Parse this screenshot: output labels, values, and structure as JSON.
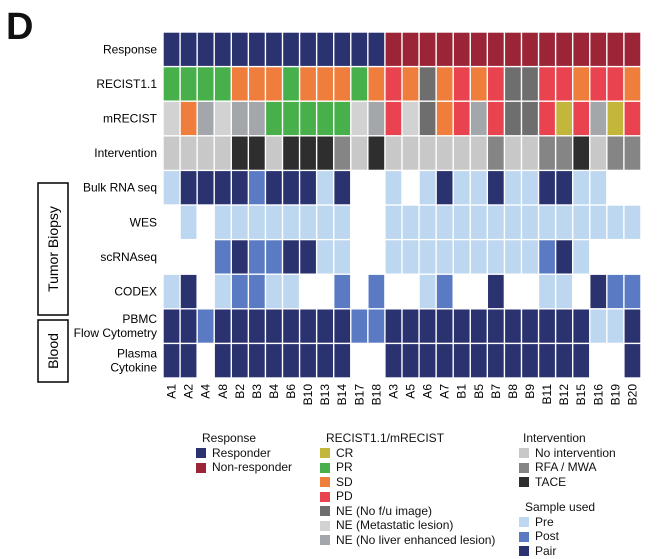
{
  "panel_label": "D",
  "colors": {
    "responder": "#2b3270",
    "non_responder": "#9b2537",
    "CR": "#c4b63a",
    "PR": "#48b04b",
    "SD": "#ef7d3c",
    "PD": "#e8434e",
    "NE_nofu": "#6e6e6e",
    "NE_met": "#d2d2d2",
    "NE_noliver": "#a3a6ab",
    "no_intervention": "#c8c8c8",
    "rfa_mwa": "#858585",
    "tace": "#2e2e2e",
    "pre": "#bcd7ef",
    "post": "#5a7bc4",
    "pair": "#2b3270",
    "empty": "#ffffff"
  },
  "group_labels": {
    "tumor_biopsy": "Tumor Biopsy",
    "blood": "Blood"
  },
  "chart_data": {
    "type": "heatmap",
    "x": [
      "A1",
      "A2",
      "A4",
      "A8",
      "B2",
      "B3",
      "B4",
      "B6",
      "B10",
      "B13",
      "B14",
      "B17",
      "B18",
      "A3",
      "A5",
      "A6",
      "A7",
      "B1",
      "B5",
      "B7",
      "B8",
      "B9",
      "B11",
      "B12",
      "B15",
      "B16",
      "B19",
      "B20"
    ],
    "rows": [
      {
        "label": "Response",
        "values": [
          "responder",
          "responder",
          "responder",
          "responder",
          "responder",
          "responder",
          "responder",
          "responder",
          "responder",
          "responder",
          "responder",
          "responder",
          "responder",
          "non_responder",
          "non_responder",
          "non_responder",
          "non_responder",
          "non_responder",
          "non_responder",
          "non_responder",
          "non_responder",
          "non_responder",
          "non_responder",
          "non_responder",
          "non_responder",
          "non_responder",
          "non_responder",
          "non_responder"
        ]
      },
      {
        "label": "RECIST1.1",
        "values": [
          "PR",
          "PR",
          "PR",
          "PR",
          "SD",
          "SD",
          "SD",
          "PR",
          "SD",
          "SD",
          "SD",
          "PR",
          "SD",
          "PD",
          "SD",
          "NE_nofu",
          "SD",
          "PD",
          "SD",
          "PD",
          "NE_nofu",
          "NE_nofu",
          "PD",
          "PD",
          "SD",
          "PD",
          "PD",
          "SD"
        ]
      },
      {
        "label": "mRECIST",
        "values": [
          "NE_met",
          "SD",
          "NE_noliver",
          "NE_met",
          "NE_noliver",
          "NE_noliver",
          "PR",
          "PR",
          "PR",
          "PR",
          "PR",
          "NE_met",
          "NE_noliver",
          "PD",
          "NE_met",
          "NE_nofu",
          "SD",
          "PD",
          "NE_noliver",
          "PD",
          "NE_nofu",
          "NE_nofu",
          "PD",
          "CR",
          "PD",
          "NE_noliver",
          "CR",
          "PD"
        ]
      },
      {
        "label": "Intervention",
        "values": [
          "no_intervention",
          "no_intervention",
          "no_intervention",
          "no_intervention",
          "tace",
          "tace",
          "no_intervention",
          "tace",
          "tace",
          "tace",
          "rfa_mwa",
          "no_intervention",
          "tace",
          "no_intervention",
          "no_intervention",
          "no_intervention",
          "no_intervention",
          "no_intervention",
          "no_intervention",
          "rfa_mwa",
          "no_intervention",
          "no_intervention",
          "rfa_mwa",
          "rfa_mwa",
          "tace",
          "no_intervention",
          "rfa_mwa",
          "rfa_mwa"
        ]
      },
      {
        "label": "Bulk RNA seq",
        "values": [
          "pre",
          "pair",
          "pair",
          "pair",
          "pair",
          "post",
          "pair",
          "pair",
          "pair",
          "pre",
          "pair",
          "empty",
          "empty",
          "pre",
          "empty",
          "pre",
          "pair",
          "pre",
          "pre",
          "pair",
          "pre",
          "pre",
          "pair",
          "pair",
          "pre",
          "pre",
          "empty",
          "empty"
        ]
      },
      {
        "label": "WES",
        "values": [
          "empty",
          "pre",
          "empty",
          "pre",
          "pre",
          "pre",
          "pre",
          "pre",
          "pre",
          "pre",
          "pre",
          "empty",
          "empty",
          "pre",
          "pre",
          "pre",
          "pre",
          "pre",
          "pre",
          "pre",
          "pre",
          "pre",
          "pre",
          "pre",
          "pre",
          "pre",
          "pre",
          "pre"
        ]
      },
      {
        "label": "scRNAseq",
        "values": [
          "empty",
          "empty",
          "empty",
          "post",
          "pair",
          "post",
          "post",
          "pair",
          "pair",
          "pre",
          "pre",
          "empty",
          "empty",
          "pre",
          "pre",
          "pre",
          "pre",
          "pre",
          "pre",
          "pre",
          "pre",
          "pre",
          "post",
          "pair",
          "pre",
          "empty",
          "empty",
          "empty"
        ]
      },
      {
        "label": "CODEX",
        "values": [
          "pre",
          "pair",
          "empty",
          "pre",
          "post",
          "post",
          "pre",
          "pre",
          "empty",
          "empty",
          "post",
          "empty",
          "post",
          "empty",
          "empty",
          "pre",
          "post",
          "empty",
          "empty",
          "pair",
          "empty",
          "empty",
          "pre",
          "pre",
          "empty",
          "pair",
          "post",
          "post"
        ]
      },
      {
        "label": "PBMC Flow Cytometry",
        "values": [
          "pair",
          "pair",
          "post",
          "pair",
          "pair",
          "pair",
          "pair",
          "pair",
          "pair",
          "pair",
          "pair",
          "post",
          "post",
          "pair",
          "pair",
          "pair",
          "pair",
          "pair",
          "pair",
          "pair",
          "pair",
          "pair",
          "pair",
          "pair",
          "pair",
          "pre",
          "pre",
          "pair"
        ]
      },
      {
        "label": "Plasma Cytokine",
        "values": [
          "pair",
          "pair",
          "empty",
          "pair",
          "pair",
          "pair",
          "pair",
          "pair",
          "pair",
          "pair",
          "pair",
          "empty",
          "empty",
          "pair",
          "pair",
          "pair",
          "pair",
          "pair",
          "pair",
          "pair",
          "pair",
          "pair",
          "pair",
          "pair",
          "pair",
          "empty",
          "empty",
          "pair"
        ]
      }
    ]
  },
  "legend": {
    "response": {
      "title": "Response",
      "items": [
        {
          "key": "responder",
          "label": "Responder"
        },
        {
          "key": "non_responder",
          "label": "Non-responder"
        }
      ]
    },
    "recist": {
      "title": "RECIST1.1/mRECIST",
      "items": [
        {
          "key": "CR",
          "label": "CR"
        },
        {
          "key": "PR",
          "label": "PR"
        },
        {
          "key": "SD",
          "label": "SD"
        },
        {
          "key": "PD",
          "label": "PD"
        },
        {
          "key": "NE_nofu",
          "label": "NE (No f/u image)"
        },
        {
          "key": "NE_met",
          "label": "NE (Metastatic lesion)"
        },
        {
          "key": "NE_noliver",
          "label": "NE (No liver enhanced lesion)"
        }
      ]
    },
    "intervention": {
      "title": "Intervention",
      "items": [
        {
          "key": "no_intervention",
          "label": "No intervention"
        },
        {
          "key": "rfa_mwa",
          "label": "RFA / MWA"
        },
        {
          "key": "tace",
          "label": "TACE"
        }
      ]
    },
    "sample": {
      "title": "Sample used",
      "items": [
        {
          "key": "pre",
          "label": "Pre"
        },
        {
          "key": "post",
          "label": "Post"
        },
        {
          "key": "pair",
          "label": "Pair"
        }
      ]
    }
  }
}
